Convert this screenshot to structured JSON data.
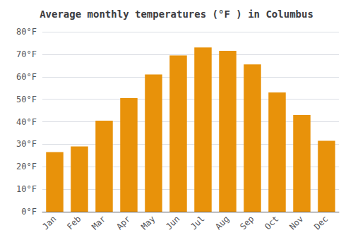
{
  "chart_data": {
    "type": "bar",
    "title": "Average monthly temperatures (°F ) in Columbus",
    "categories": [
      "Jan",
      "Feb",
      "Mar",
      "Apr",
      "May",
      "Jun",
      "Jul",
      "Aug",
      "Sep",
      "Oct",
      "Nov",
      "Dec"
    ],
    "values": [
      26.5,
      29.0,
      40.5,
      50.5,
      61.0,
      69.5,
      73.0,
      71.5,
      65.5,
      53.0,
      43.0,
      31.5
    ],
    "color": "#E8920A",
    "ylim": [
      0,
      80
    ],
    "yticks": [
      {
        "value": 0,
        "label": "0°F"
      },
      {
        "value": 10,
        "label": "10°F"
      },
      {
        "value": 20,
        "label": "20°F"
      },
      {
        "value": 30,
        "label": "30°F"
      },
      {
        "value": 40,
        "label": "40°F"
      },
      {
        "value": 50,
        "label": "50°F"
      },
      {
        "value": 60,
        "label": "60°F"
      },
      {
        "value": 70,
        "label": "70°F"
      },
      {
        "value": 80,
        "label": "80°F"
      }
    ],
    "grid": true
  }
}
